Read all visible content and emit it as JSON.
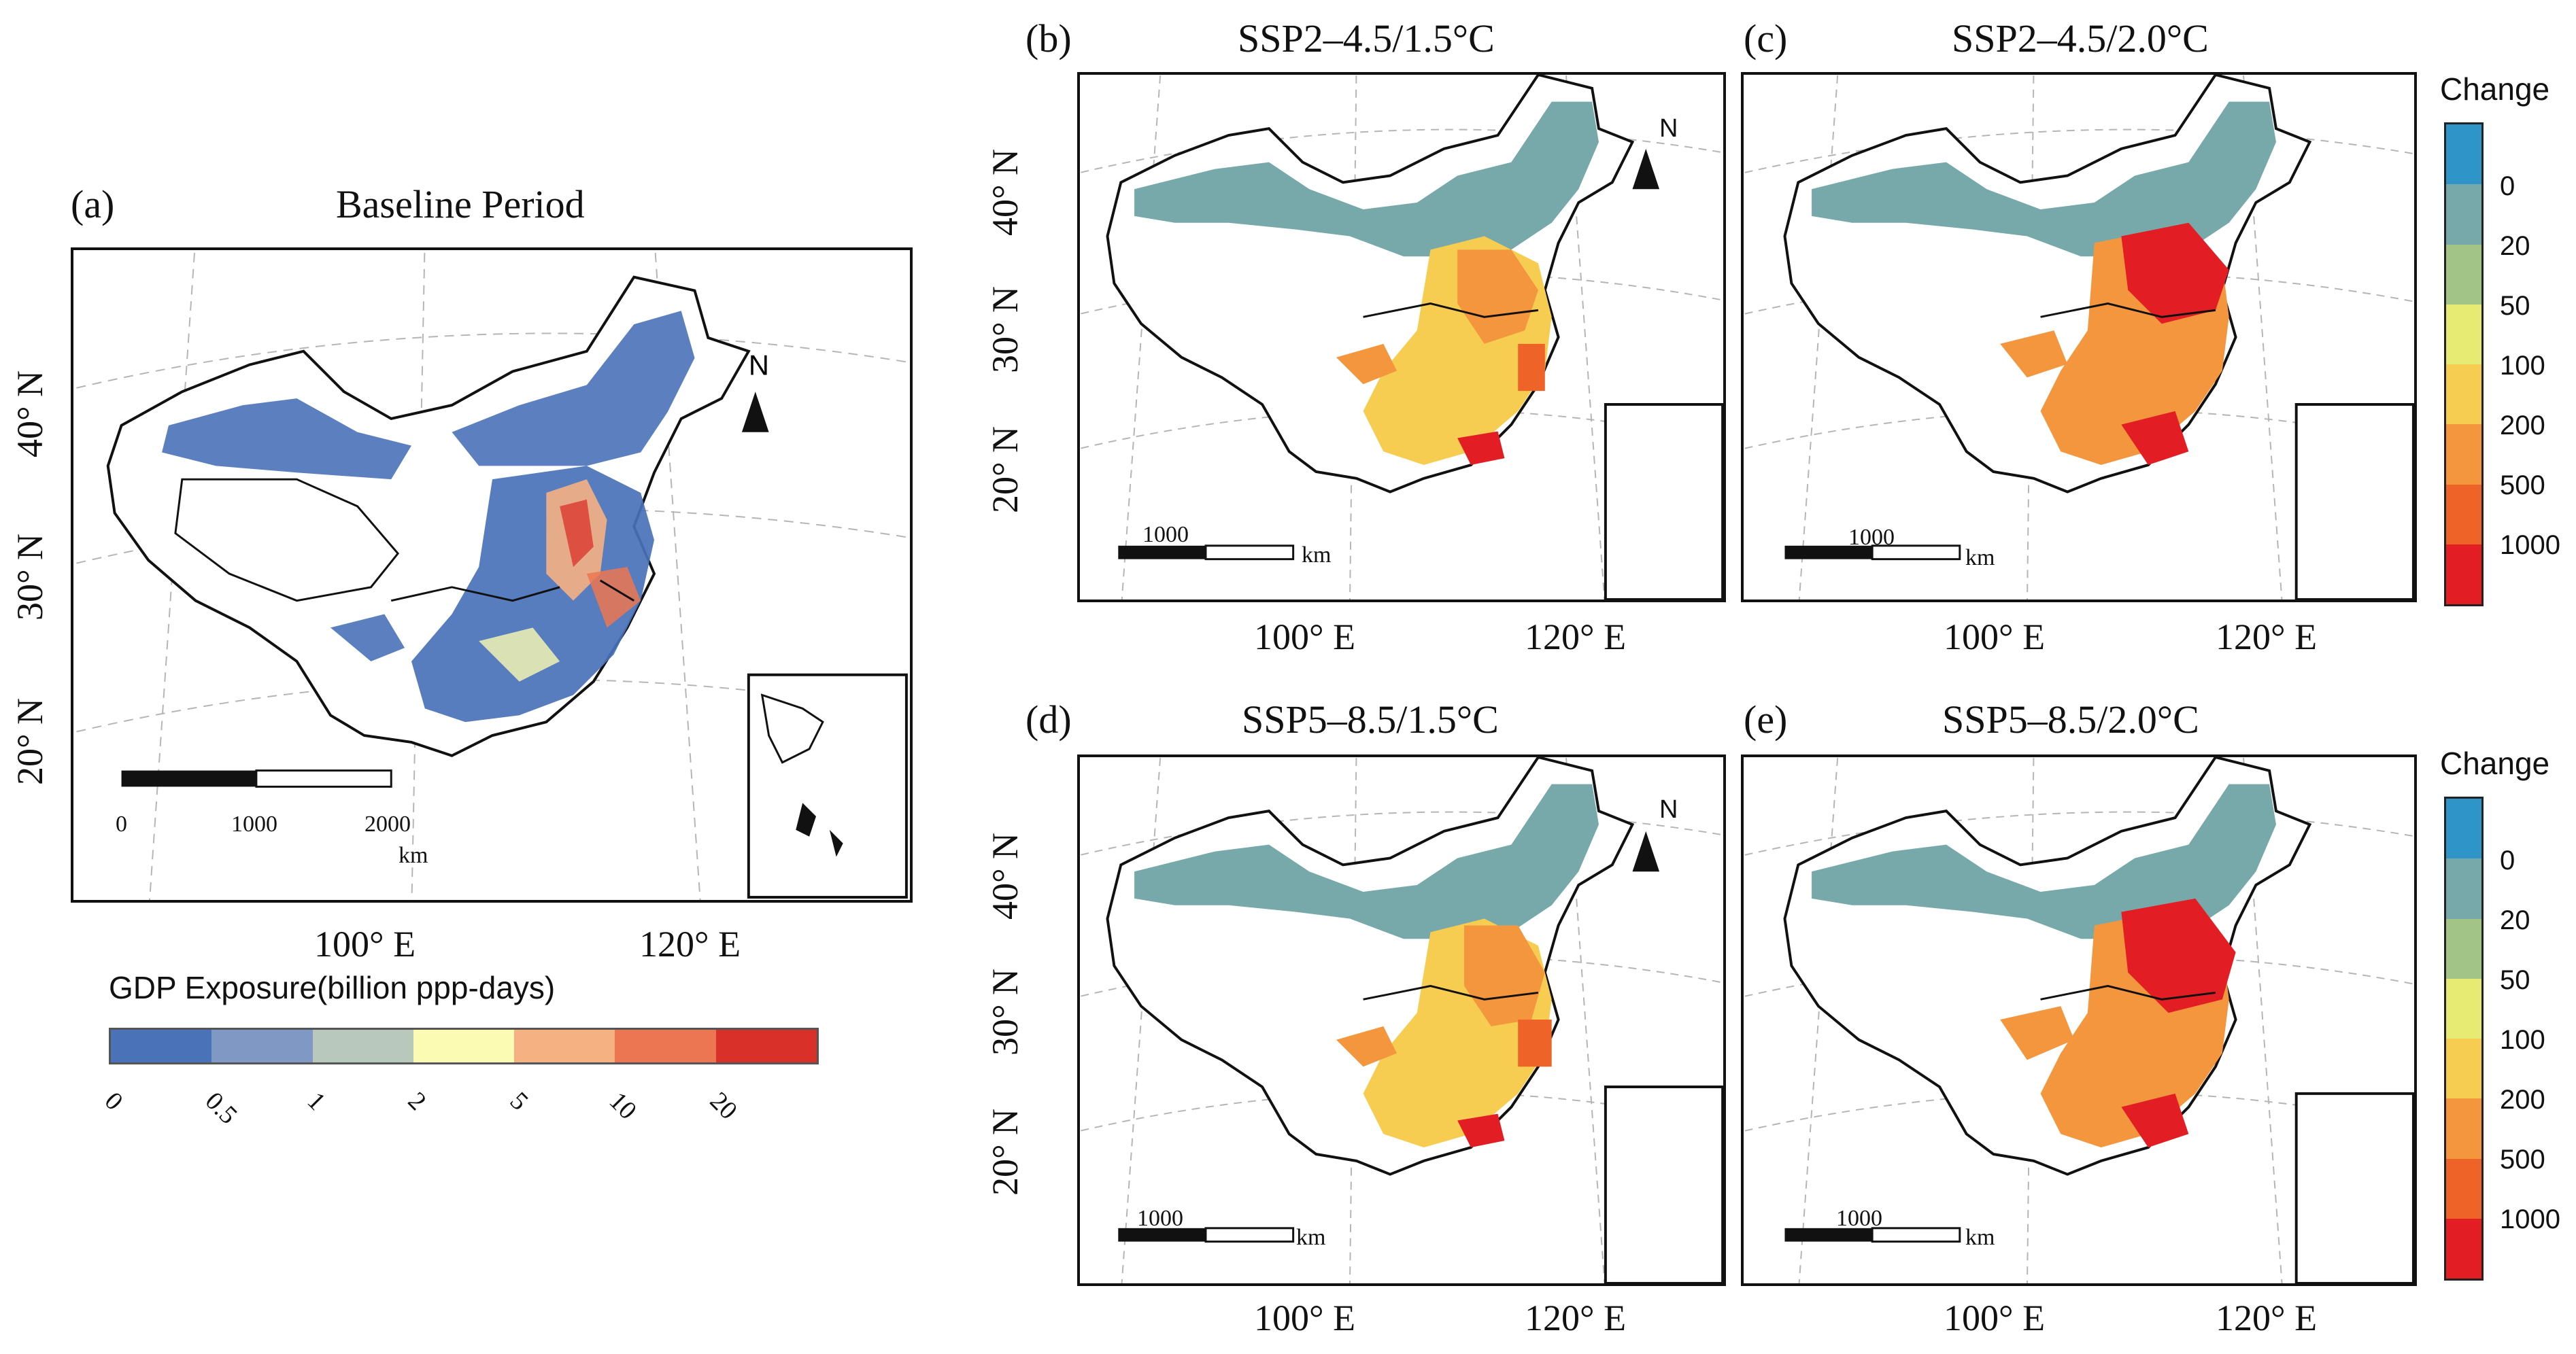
{
  "figure": {
    "panels": [
      {
        "id": "a",
        "tag": "(a)",
        "title": "Baseline Period",
        "scale": {
          "labels": [
            "0",
            "1000",
            "2000"
          ],
          "unit": "km"
        }
      },
      {
        "id": "b",
        "tag": "(b)",
        "title": "SSP2–4.5/1.5°C",
        "scale": {
          "labels": [
            "1000"
          ],
          "unit": "km"
        }
      },
      {
        "id": "c",
        "tag": "(c)",
        "title": "SSP2–4.5/2.0°C",
        "scale": {
          "labels": [
            "1000"
          ],
          "unit": "km"
        }
      },
      {
        "id": "d",
        "tag": "(d)",
        "title": "SSP5–8.5/1.5°C",
        "scale": {
          "labels": [
            "1000"
          ],
          "unit": "km"
        }
      },
      {
        "id": "e",
        "tag": "(e)",
        "title": "SSP5–8.5/2.0°C",
        "scale": {
          "labels": [
            "1000"
          ],
          "unit": "km"
        }
      }
    ],
    "north_label": "N",
    "axis_labels": {
      "lat": [
        "40° N",
        "30° N",
        "20° N"
      ],
      "lon": [
        "100° E",
        "120° E"
      ]
    },
    "baseline_legend": {
      "title": "GDP Exposure(billion ppp-days)",
      "breaks": [
        "0",
        "0.5",
        "1",
        "2",
        "5",
        "10",
        "20"
      ],
      "colors": [
        "#4a72b8",
        "#7f99c4",
        "#b9c8bd",
        "#fbfbb3",
        "#f6b183",
        "#ec7552",
        "#d9302a"
      ]
    },
    "change_legend": {
      "title": "Change",
      "breaks": [
        "0",
        "20",
        "50",
        "100",
        "200",
        "500",
        "1000"
      ],
      "colors": [
        "#2f94c8",
        "#78a9aa",
        "#a3c487",
        "#e7ea73",
        "#f7cd51",
        "#f3963d",
        "#ee6328",
        "#e21e24"
      ]
    }
  }
}
